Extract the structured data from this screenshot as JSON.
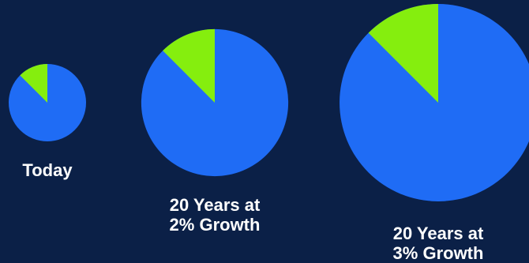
{
  "chart_data": {
    "type": "pie",
    "colors": {
      "background": "#0b2047",
      "major": "#1f6cf5",
      "minor": "#85ee0e"
    },
    "charts": [
      {
        "label_lines": [
          "Today"
        ],
        "relative_size": 1.0,
        "minor_share": 0.125
      },
      {
        "label_lines": [
          "20 Years at",
          "2% Growth"
        ],
        "relative_size": 1.9,
        "minor_share": 0.125
      },
      {
        "label_lines": [
          "20 Years at",
          "3% Growth"
        ],
        "relative_size": 2.55,
        "minor_share": 0.125
      }
    ]
  }
}
